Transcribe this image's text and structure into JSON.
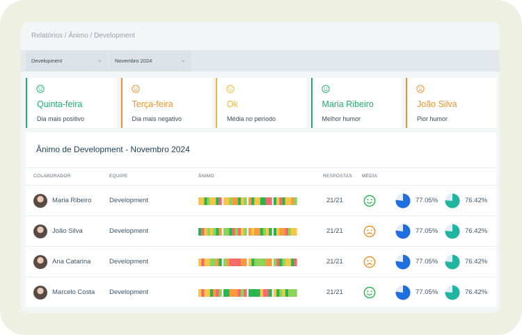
{
  "breadcrumb": "Relatórios / Ânimo / Development",
  "filters": [
    "Development",
    "Novembro 2024"
  ],
  "cards": [
    {
      "title": "Quinta-feira",
      "subtitle": "Dia mais positivo",
      "color": "#1fae6e",
      "icon": "smile"
    },
    {
      "title": "Terça-feira",
      "subtitle": "Dia mais negativo",
      "color": "#f0902a",
      "icon": "frown"
    },
    {
      "title": "Ok",
      "subtitle": "Média no período",
      "color": "#f2b52a",
      "icon": "neutral"
    },
    {
      "title": "Maria Ribeiro",
      "subtitle": "Melhor humor",
      "color": "#1fae6e",
      "icon": "smile"
    },
    {
      "title": "João Silva",
      "subtitle": "Pior humor",
      "color": "#f0902a",
      "icon": "frown"
    }
  ],
  "table": {
    "title": "Ânimo de Development - Novembro 2024",
    "columns": [
      "COLABORADOR",
      "EQUIPE",
      "ÂNIMO",
      "RESPOSTAS",
      "MÉDIA"
    ],
    "rows": [
      {
        "name": "Maria Ribeiro",
        "team": "Development",
        "responses": "21/21",
        "mood": "smile",
        "mood_color": "#2bb34f",
        "pct1": "77.05%",
        "pct2": "76.42%"
      },
      {
        "name": "João Silva",
        "team": "Development",
        "responses": "21/21",
        "mood": "frown",
        "mood_color": "#f0902a",
        "pct1": "77.05%",
        "pct2": "76.42%"
      },
      {
        "name": "Ana Catarina",
        "team": "Development",
        "responses": "21/21",
        "mood": "frown",
        "mood_color": "#f0902a",
        "pct1": "77.05%",
        "pct2": "76.42%"
      },
      {
        "name": "Marcelo Costa",
        "team": "Development",
        "responses": "21/21",
        "mood": "smile",
        "mood_color": "#2bb34f",
        "pct1": "77.05%",
        "pct2": "76.42%"
      }
    ]
  }
}
